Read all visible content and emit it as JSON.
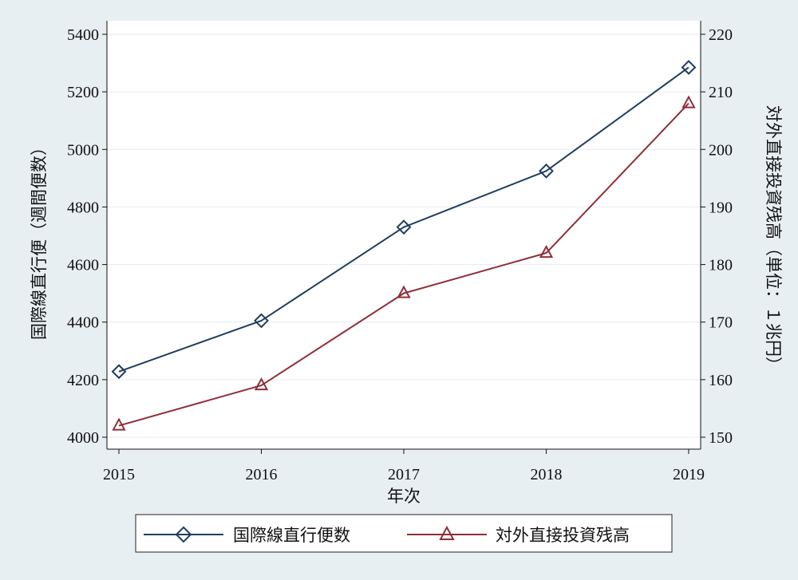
{
  "chart_data": {
    "type": "line",
    "x": [
      2015,
      2016,
      2017,
      2018,
      2019
    ],
    "xlabel": "年次",
    "x_ticks": [
      "2015",
      "2016",
      "2017",
      "2018",
      "2019"
    ],
    "y_left": {
      "label": "国際線直行便（週間便数）",
      "range": [
        4000,
        5400
      ],
      "ticks": [
        "4000",
        "4200",
        "4400",
        "4600",
        "4800",
        "5000",
        "5200",
        "5400"
      ]
    },
    "y_right": {
      "label": "対外直接投資残高（単位：１兆円）",
      "range": [
        150,
        220
      ],
      "ticks": [
        "150",
        "160",
        "170",
        "180",
        "190",
        "200",
        "210",
        "220"
      ]
    },
    "series": [
      {
        "name": "国際線直行便数",
        "axis": "left",
        "marker": "diamond",
        "color": "#1f3e5e",
        "values": [
          4228,
          4405,
          4730,
          4925,
          5285
        ]
      },
      {
        "name": "対外直接投資残高",
        "axis": "right",
        "marker": "triangle",
        "color": "#8e2e38",
        "values": [
          152,
          159,
          175,
          182,
          208
        ]
      }
    ],
    "grid": true,
    "legend": "bottom"
  }
}
